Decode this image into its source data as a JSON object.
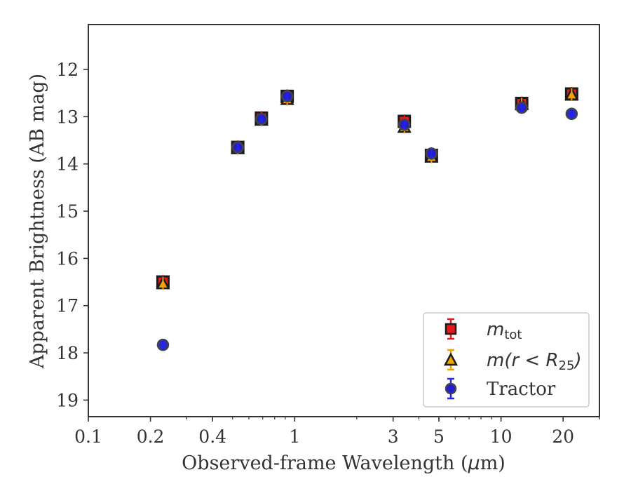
{
  "chart_data": {
    "type": "scatter",
    "xlabel_prefix": "Observed-frame Wavelength (",
    "xlabel_mu": "μ",
    "xlabel_suffix": "m)",
    "ylabel": "Apparent Brightness (AB mag)",
    "xscale": "log",
    "xlim": [
      0.1,
      30
    ],
    "ylim": [
      19.35,
      11.05
    ],
    "y_inverted": true,
    "x_ticks": [
      0.1,
      0.2,
      0.4,
      1,
      3,
      5,
      10,
      20
    ],
    "x_tick_labels": [
      "0.1",
      "0.2",
      "0.4",
      "1",
      "3",
      "5",
      "10",
      "20"
    ],
    "y_ticks": [
      12,
      13,
      14,
      15,
      16,
      17,
      18,
      19
    ],
    "y_tick_labels": [
      "12",
      "13",
      "14",
      "15",
      "16",
      "17",
      "18",
      "19"
    ],
    "grid": false,
    "legend_position": "lower-right",
    "series": [
      {
        "name": "m_tot",
        "legend_main": "m",
        "legend_sub": "tot",
        "marker": "square",
        "color": "#e31a1c",
        "edge": "#1a1a1a",
        "errcolor": "#e31a1c",
        "x": [
          0.23,
          0.53,
          0.69,
          0.92,
          3.4,
          4.6,
          12.6,
          22
        ],
        "y": [
          16.5,
          13.65,
          13.03,
          12.57,
          13.1,
          13.82,
          12.72,
          12.52
        ]
      },
      {
        "name": "m(r < R25)",
        "legend_main": "m",
        "legend_rest": "(r < R",
        "legend_sub": "25",
        "legend_close": ")",
        "marker": "triangle",
        "color": "#f0a202",
        "edge": "#1a1a1a",
        "errcolor": "#f0a202",
        "x": [
          0.23,
          0.53,
          0.69,
          0.92,
          3.4,
          4.6,
          12.6,
          22
        ],
        "y": [
          16.53,
          13.67,
          13.07,
          12.63,
          13.22,
          13.85,
          12.74,
          12.53
        ]
      },
      {
        "name": "Tractor",
        "legend_main": "Tractor",
        "marker": "circle",
        "color": "#1f1fd0",
        "edge": "#444444",
        "errcolor": "#2222ff",
        "x": [
          0.23,
          0.53,
          0.69,
          0.92,
          3.4,
          4.6,
          12.6,
          22
        ],
        "y": [
          17.83,
          13.65,
          13.05,
          12.57,
          13.17,
          13.78,
          12.81,
          12.94
        ]
      }
    ]
  }
}
